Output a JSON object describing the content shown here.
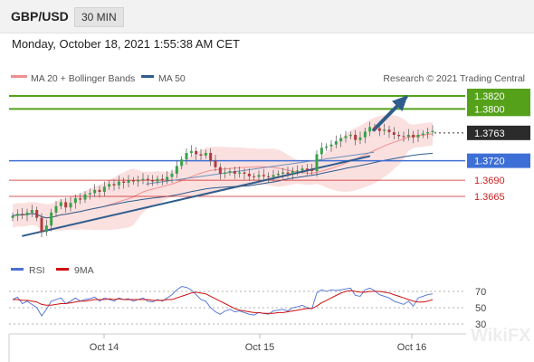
{
  "header": {
    "pair": "GBP/USD",
    "timeframe": "30 MIN"
  },
  "datetime": "Monday, October 18, 2021 1:55:38 AM CET",
  "watermark": "WikiFX",
  "colors": {
    "bollinger": "#f08f8f",
    "ma50": "#2f5d8c",
    "up": "#37a24a",
    "down": "#b23a3a",
    "green_level": "#55a11a",
    "blue_level": "#3d6fd6",
    "red_level": "#cc2222",
    "rsi": "#4c6fd6",
    "rsi_ma": "#cc1111"
  },
  "chart_data": {
    "type": "candlestick",
    "legend": [
      {
        "name": "MA 20 + Bollinger Bands",
        "color": "#f08f8f"
      },
      {
        "name": "MA 50",
        "color": "#2f5d8c"
      }
    ],
    "legend_placement": "top-left",
    "source": "Research © 2021 Trading Central",
    "x_ticks": [
      "Oct 14",
      "Oct 15",
      "Oct 16"
    ],
    "price_close_approx": [
      1.3635,
      1.3638,
      1.3636,
      1.364,
      1.3644,
      1.3632,
      1.361,
      1.362,
      1.364,
      1.365,
      1.3656,
      1.3648,
      1.3655,
      1.3662,
      1.366,
      1.3668,
      1.367,
      1.3675,
      1.3672,
      1.368,
      1.3684,
      1.3682,
      1.3688,
      1.3686,
      1.369,
      1.3688,
      1.369,
      1.3692,
      1.369,
      1.3688,
      1.3692,
      1.369,
      1.3695,
      1.37,
      1.3712,
      1.3722,
      1.3732,
      1.3735,
      1.373,
      1.3728,
      1.3732,
      1.372,
      1.371,
      1.37,
      1.3702,
      1.3704,
      1.37,
      1.3702,
      1.37,
      1.3696,
      1.3695,
      1.3698,
      1.3696,
      1.3695,
      1.3698,
      1.37,
      1.3702,
      1.37,
      1.3704,
      1.3705,
      1.3708,
      1.3706,
      1.3704,
      1.373,
      1.374,
      1.3742,
      1.3745,
      1.375,
      1.3755,
      1.3758,
      1.376,
      1.3752,
      1.3756,
      1.3765,
      1.3772,
      1.377,
      1.3766,
      1.3768,
      1.3764,
      1.376,
      1.3758,
      1.3757,
      1.376,
      1.3756,
      1.376,
      1.3762,
      1.3764,
      1.3766
    ],
    "trendlines": [
      {
        "from": [
          0.03,
          1.3604
        ],
        "to": [
          0.79,
          1.3727
        ],
        "color": "#2f5d8c"
      },
      {
        "from": [
          0.8,
          1.3768
        ],
        "to": [
          0.87,
          1.3818
        ],
        "color": "#2f5d8c",
        "arrow": true
      }
    ],
    "levels": [
      {
        "value": 1.382,
        "label": "1.3820",
        "type": "resistance",
        "box": "green"
      },
      {
        "value": 1.38,
        "label": "1.3800",
        "type": "resistance",
        "box": "green"
      },
      {
        "value": 1.3763,
        "label": "1.3763",
        "type": "last",
        "box": "black"
      },
      {
        "value": 1.372,
        "label": "1.3720",
        "type": "pivot",
        "box": "blue"
      },
      {
        "value": 1.369,
        "label": "1.3690",
        "type": "support",
        "box": "none"
      },
      {
        "value": 1.3665,
        "label": "1.3665",
        "type": "support",
        "box": "none"
      }
    ],
    "rsi": {
      "legend": [
        {
          "name": "RSI",
          "color": "#4c6fd6"
        },
        {
          "name": "9MA",
          "color": "#cc1111"
        }
      ],
      "levels": [
        70,
        50,
        30
      ],
      "ylim": [
        20,
        80
      ],
      "values": [
        60,
        63,
        55,
        58,
        54,
        50,
        40,
        48,
        58,
        60,
        62,
        55,
        58,
        62,
        58,
        60,
        61,
        63,
        58,
        62,
        60,
        58,
        62,
        60,
        61,
        58,
        60,
        62,
        58,
        57,
        60,
        58,
        62,
        66,
        72,
        76,
        75,
        72,
        66,
        60,
        58,
        50,
        45,
        42,
        46,
        48,
        45,
        46,
        44,
        42,
        41,
        44,
        43,
        42,
        46,
        47,
        48,
        46,
        50,
        51,
        53,
        50,
        49,
        68,
        72,
        70,
        72,
        71,
        72,
        73,
        74,
        65,
        64,
        72,
        74,
        71,
        66,
        64,
        62,
        58,
        56,
        54,
        58,
        52,
        62,
        64,
        66,
        67
      ],
      "ma_values": [
        60,
        60,
        59,
        59,
        58,
        57,
        54,
        53,
        53,
        54,
        55,
        55,
        56,
        57,
        58,
        58,
        59,
        60,
        60,
        60,
        61,
        60,
        61,
        60,
        60,
        60,
        60,
        60,
        60,
        59,
        59,
        59,
        60,
        60,
        62,
        64,
        66,
        68,
        69,
        68,
        67,
        64,
        61,
        58,
        55,
        52,
        49,
        47,
        46,
        45,
        44,
        44,
        43,
        43,
        43,
        44,
        44,
        45,
        46,
        47,
        48,
        49,
        49,
        52,
        56,
        59,
        62,
        65,
        68,
        70,
        71,
        70,
        69,
        69,
        70,
        70,
        70,
        69,
        68,
        66,
        64,
        62,
        60,
        58,
        57,
        57,
        58,
        60
      ]
    }
  }
}
